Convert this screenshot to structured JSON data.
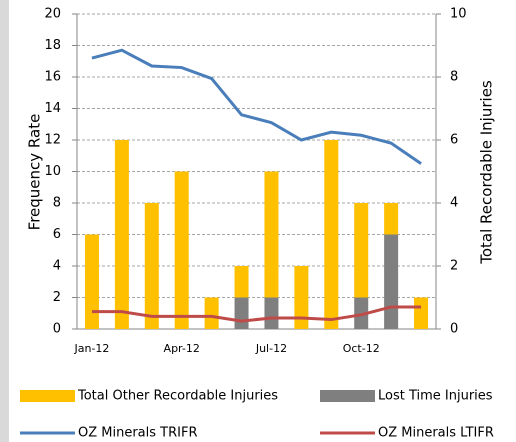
{
  "chart_data": {
    "type": "combo",
    "categories": [
      "Jan-12",
      null,
      null,
      "Apr-12",
      null,
      null,
      "Jul-12",
      null,
      null,
      "Oct-12",
      null,
      null
    ],
    "series": [
      {
        "name": "Total Other Recordable Injuries",
        "type": "bar",
        "axis": "y2",
        "color": "#ffc000",
        "values": [
          3,
          6,
          4,
          5,
          1,
          1,
          4,
          2,
          6,
          3,
          1,
          1
        ]
      },
      {
        "name": "Lost Time Injuries",
        "type": "bar",
        "axis": "y2",
        "color": "#7f7f7f",
        "values": [
          0,
          0,
          0,
          0,
          0,
          1,
          1,
          0,
          0,
          1,
          3,
          0
        ]
      },
      {
        "name": "OZ Minerals TRIFR",
        "type": "line",
        "color": "#4a7ebb",
        "values": [
          17.2,
          17.7,
          16.7,
          16.6,
          15.9,
          13.6,
          13.1,
          12.0,
          12.5,
          12.3,
          11.8,
          10.5
        ]
      },
      {
        "name": "OZ Minerals LTIFR",
        "type": "line",
        "color": "#be4b48",
        "values": [
          1.1,
          1.1,
          0.8,
          0.8,
          0.8,
          0.5,
          0.7,
          0.7,
          0.6,
          0.9,
          1.4,
          1.4
        ]
      }
    ],
    "y_label": "Frequency Rate",
    "y2_label": "Total Recordable Injuries",
    "ylim": [
      0,
      20
    ],
    "yticks": [
      0,
      2,
      4,
      6,
      8,
      10,
      12,
      14,
      16,
      18,
      20
    ],
    "y2lim": [
      0,
      10
    ],
    "y2ticks": [
      0,
      2,
      4,
      6,
      8,
      10
    ],
    "grid": true,
    "legend": "bottom"
  }
}
